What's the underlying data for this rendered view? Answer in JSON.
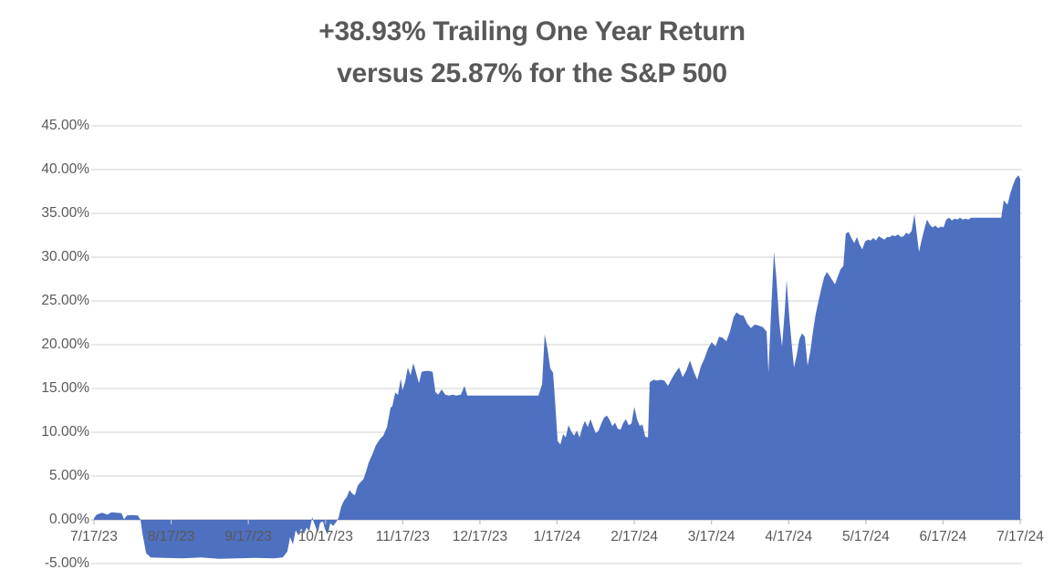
{
  "title": {
    "line1": "+38.93% Trailing One Year Return",
    "line2": "versus 25.87% for the S&P 500"
  },
  "chart_data": {
    "type": "area",
    "title": "+38.93% Trailing One Year Return versus 25.87% for the S&P 500",
    "xlabel": "",
    "ylabel": "",
    "x_unit": "days since 7/17/23",
    "x_range": [
      0,
      366
    ],
    "ylim": [
      -5,
      45
    ],
    "grid": "horizontal",
    "legend": "none",
    "x_ticks": [
      "7/17/23",
      "8/17/23",
      "9/17/23",
      "10/17/23",
      "11/17/23",
      "12/17/23",
      "1/17/24",
      "2/17/24",
      "3/17/24",
      "4/17/24",
      "5/17/24",
      "6/17/24",
      "7/17/24"
    ],
    "y_ticks": [
      {
        "label": "45.00%",
        "value": 45
      },
      {
        "label": "40.00%",
        "value": 40
      },
      {
        "label": "35.00%",
        "value": 35
      },
      {
        "label": "30.00%",
        "value": 30
      },
      {
        "label": "25.00%",
        "value": 25
      },
      {
        "label": "20.00%",
        "value": 20
      },
      {
        "label": "15.00%",
        "value": 15
      },
      {
        "label": "10.00%",
        "value": 10
      },
      {
        "label": "5.00%",
        "value": 5
      },
      {
        "label": "0.00%",
        "value": 0
      },
      {
        "label": "-5.00%",
        "value": -5
      }
    ],
    "benchmark": {
      "name": "S&P 500",
      "trailing_one_year_return_pct": 25.87
    },
    "series": [
      {
        "name": "Trailing One Year Return",
        "final_value_pct": 38.93,
        "points": [
          [
            0,
            0.2
          ],
          [
            1.1,
            0.6
          ],
          [
            3.2,
            0.8
          ],
          [
            5.4,
            0.6
          ],
          [
            6.9,
            0.85
          ],
          [
            9,
            0.8
          ],
          [
            10.8,
            0.75
          ],
          [
            11.9,
            0.05
          ],
          [
            13,
            0.5
          ],
          [
            15.1,
            0.55
          ],
          [
            17.3,
            0.5
          ],
          [
            18.4,
            0
          ],
          [
            19.1,
            -1.5
          ],
          [
            20.6,
            -3.8
          ],
          [
            22.4,
            -4.3
          ],
          [
            27.8,
            -4.35
          ],
          [
            35,
            -4.4
          ],
          [
            42.2,
            -4.3
          ],
          [
            49.4,
            -4.45
          ],
          [
            56.6,
            -4.4
          ],
          [
            63.8,
            -4.35
          ],
          [
            71,
            -4.4
          ],
          [
            74.6,
            -4.3
          ],
          [
            76.4,
            -3.6
          ],
          [
            77.5,
            -2
          ],
          [
            78.6,
            -2.8
          ],
          [
            79.7,
            -1.2
          ],
          [
            80.8,
            -1.8
          ],
          [
            81.9,
            -1
          ],
          [
            82.9,
            -1.6
          ],
          [
            84,
            -0.9
          ],
          [
            85.1,
            -1.3
          ],
          [
            86.2,
            0.3
          ],
          [
            87.3,
            -0.6
          ],
          [
            88.4,
            -1.5
          ],
          [
            89.4,
            -0.3
          ],
          [
            90.5,
            -0.2
          ],
          [
            91.2,
            -1
          ],
          [
            92.3,
            -1.7
          ],
          [
            93.4,
            -0.4
          ],
          [
            94.5,
            -0.7
          ],
          [
            95.6,
            -0.3
          ],
          [
            96.6,
            0.2
          ],
          [
            97.7,
            1.5
          ],
          [
            98.8,
            2.2
          ],
          [
            99.9,
            2.6
          ],
          [
            101,
            3.4
          ],
          [
            102,
            3
          ],
          [
            103.1,
            2.8
          ],
          [
            104.2,
            3.9
          ],
          [
            105.3,
            4.3
          ],
          [
            106.4,
            4.6
          ],
          [
            107.5,
            5.5
          ],
          [
            108.5,
            6.5
          ],
          [
            110,
            7.5
          ],
          [
            111.4,
            8.5
          ],
          [
            112.9,
            9.2
          ],
          [
            114.3,
            9.6
          ],
          [
            115.8,
            10.6
          ],
          [
            117.2,
            12.8
          ],
          [
            117.9,
            13
          ],
          [
            119,
            14.5
          ],
          [
            120.1,
            14.3
          ],
          [
            121.2,
            16.1
          ],
          [
            121.9,
            14.8
          ],
          [
            123,
            15.8
          ],
          [
            124,
            17.4
          ],
          [
            125.1,
            16.5
          ],
          [
            126.2,
            17.9
          ],
          [
            127.3,
            16.8
          ],
          [
            128.4,
            15.6
          ],
          [
            129.5,
            16.9
          ],
          [
            130.9,
            17
          ],
          [
            132.4,
            17
          ],
          [
            133.8,
            16.9
          ],
          [
            134.9,
            14.6
          ],
          [
            136,
            14.3
          ],
          [
            137.4,
            14.9
          ],
          [
            138.8,
            14.3
          ],
          [
            140.3,
            14.2
          ],
          [
            141.7,
            14.3
          ],
          [
            143.2,
            14.2
          ],
          [
            145,
            14.3
          ],
          [
            146.4,
            15.3
          ],
          [
            147.5,
            14.2
          ],
          [
            150.4,
            14.2
          ],
          [
            154,
            14.2
          ],
          [
            159.4,
            14.2
          ],
          [
            164.8,
            14.2
          ],
          [
            170.2,
            14.2
          ],
          [
            175.6,
            14.2
          ],
          [
            177.1,
            15.5
          ],
          [
            178.1,
            21.2
          ],
          [
            179.2,
            19.5
          ],
          [
            180.3,
            17.3
          ],
          [
            181.4,
            16.8
          ],
          [
            182.1,
            14
          ],
          [
            183.2,
            9
          ],
          [
            184.3,
            8.6
          ],
          [
            185.4,
            9.8
          ],
          [
            186.4,
            9.4
          ],
          [
            187.5,
            10.8
          ],
          [
            188.6,
            10.1
          ],
          [
            189.7,
            9.6
          ],
          [
            190.8,
            10.2
          ],
          [
            191.9,
            9.4
          ],
          [
            192.9,
            10.5
          ],
          [
            194,
            11.3
          ],
          [
            195.1,
            10.6
          ],
          [
            196.2,
            11.5
          ],
          [
            197.3,
            10.6
          ],
          [
            198.3,
            9.9
          ],
          [
            199.4,
            10.2
          ],
          [
            200.5,
            11
          ],
          [
            201.6,
            11.7
          ],
          [
            202.7,
            11.9
          ],
          [
            203.8,
            11.4
          ],
          [
            204.8,
            10.7
          ],
          [
            205.9,
            11.1
          ],
          [
            207,
            10.4
          ],
          [
            208.1,
            10.3
          ],
          [
            209.2,
            11.1
          ],
          [
            210.2,
            11.5
          ],
          [
            211.3,
            10.8
          ],
          [
            212.4,
            11
          ],
          [
            213.5,
            12.9
          ],
          [
            214.6,
            11.5
          ],
          [
            215.7,
            10.7
          ],
          [
            216.7,
            10.9
          ],
          [
            217.8,
            9.5
          ],
          [
            218.9,
            9.4
          ],
          [
            219.6,
            15.7
          ],
          [
            221.1,
            16
          ],
          [
            222.5,
            15.9
          ],
          [
            223.9,
            16
          ],
          [
            225.4,
            15.9
          ],
          [
            226.8,
            15.3
          ],
          [
            228.3,
            16.1
          ],
          [
            229.7,
            16.8
          ],
          [
            231.2,
            17.4
          ],
          [
            232.6,
            16.3
          ],
          [
            234,
            17
          ],
          [
            235.5,
            18.2
          ],
          [
            236.9,
            17
          ],
          [
            238.4,
            16
          ],
          [
            239.8,
            17.5
          ],
          [
            241.2,
            18.4
          ],
          [
            242.7,
            19.6
          ],
          [
            244.1,
            20.3
          ],
          [
            245.6,
            19.8
          ],
          [
            247,
            20.9
          ],
          [
            248.4,
            20.8
          ],
          [
            249.9,
            20.4
          ],
          [
            251.3,
            21.5
          ],
          [
            252.8,
            23.2
          ],
          [
            253.9,
            23.7
          ],
          [
            255.3,
            23.4
          ],
          [
            256.7,
            23.3
          ],
          [
            258.2,
            22.4
          ],
          [
            259.6,
            21.9
          ],
          [
            261.1,
            22.3
          ],
          [
            262.5,
            22.2
          ],
          [
            264.3,
            22
          ],
          [
            265.8,
            21.5
          ],
          [
            266.5,
            16.8
          ],
          [
            267.6,
            24
          ],
          [
            268.7,
            30.6
          ],
          [
            269.7,
            27.5
          ],
          [
            270.8,
            22.5
          ],
          [
            271.9,
            19.8
          ],
          [
            273,
            24
          ],
          [
            273.7,
            27.4
          ],
          [
            274.8,
            23
          ],
          [
            275.9,
            19.5
          ],
          [
            276.6,
            17.4
          ],
          [
            277.7,
            18.8
          ],
          [
            278.7,
            20.6
          ],
          [
            279.8,
            21.3
          ],
          [
            280.9,
            20.9
          ],
          [
            282,
            17.6
          ],
          [
            283.1,
            19.3
          ],
          [
            284.1,
            21.5
          ],
          [
            285.2,
            23.5
          ],
          [
            286.3,
            25
          ],
          [
            287.4,
            26.4
          ],
          [
            288.5,
            27.7
          ],
          [
            289.6,
            28.3
          ],
          [
            290.6,
            27.9
          ],
          [
            291.7,
            27.4
          ],
          [
            292.8,
            26.9
          ],
          [
            293.9,
            27.8
          ],
          [
            295,
            28.6
          ],
          [
            296.1,
            29
          ],
          [
            297.1,
            32.7
          ],
          [
            298.2,
            32.9
          ],
          [
            299.3,
            32.2
          ],
          [
            300.4,
            31.6
          ],
          [
            301.5,
            32.3
          ],
          [
            302.6,
            31.4
          ],
          [
            303.6,
            30.9
          ],
          [
            304.7,
            31.8
          ],
          [
            305.8,
            32
          ],
          [
            306.9,
            31.9
          ],
          [
            308,
            32.2
          ],
          [
            309,
            31.9
          ],
          [
            310.1,
            32.4
          ],
          [
            311.2,
            32.2
          ],
          [
            312.3,
            32
          ],
          [
            313.4,
            32.3
          ],
          [
            314.5,
            32.3
          ],
          [
            315.5,
            32.5
          ],
          [
            316.6,
            32.4
          ],
          [
            317.7,
            32.6
          ],
          [
            318.8,
            32.3
          ],
          [
            319.9,
            32.4
          ],
          [
            321,
            32.8
          ],
          [
            322,
            32.6
          ],
          [
            323.1,
            33
          ],
          [
            324.2,
            34.9
          ],
          [
            325.3,
            32.3
          ],
          [
            326,
            30.6
          ],
          [
            327.1,
            32
          ],
          [
            328.2,
            33.3
          ],
          [
            329.2,
            34.3
          ],
          [
            330.3,
            33.7
          ],
          [
            331.4,
            33.4
          ],
          [
            332.5,
            33.6
          ],
          [
            333.6,
            33.3
          ],
          [
            334.7,
            33.5
          ],
          [
            335.7,
            33.4
          ],
          [
            336.8,
            34.3
          ],
          [
            337.9,
            34.5
          ],
          [
            339,
            34.2
          ],
          [
            340.1,
            34.4
          ],
          [
            341.2,
            34.3
          ],
          [
            342.2,
            34.5
          ],
          [
            343.3,
            34.3
          ],
          [
            344.4,
            34.4
          ],
          [
            345.5,
            34.3
          ],
          [
            346.6,
            34.5
          ],
          [
            348.7,
            34.5
          ],
          [
            352.3,
            34.5
          ],
          [
            355.9,
            34.5
          ],
          [
            358.5,
            34.5
          ],
          [
            359.5,
            36.5
          ],
          [
            360.3,
            36.2
          ],
          [
            361,
            36
          ],
          [
            362.1,
            37.3
          ],
          [
            363.1,
            38.2
          ],
          [
            364.2,
            39
          ],
          [
            365.3,
            39.35
          ],
          [
            366,
            38.93
          ]
        ]
      }
    ],
    "colors": {
      "area_fill": "#4E70C0",
      "gridline": "#D9D9D9",
      "axis_line": "#BFBFBF",
      "tick_text": "#595959",
      "title_text": "#595959"
    }
  }
}
